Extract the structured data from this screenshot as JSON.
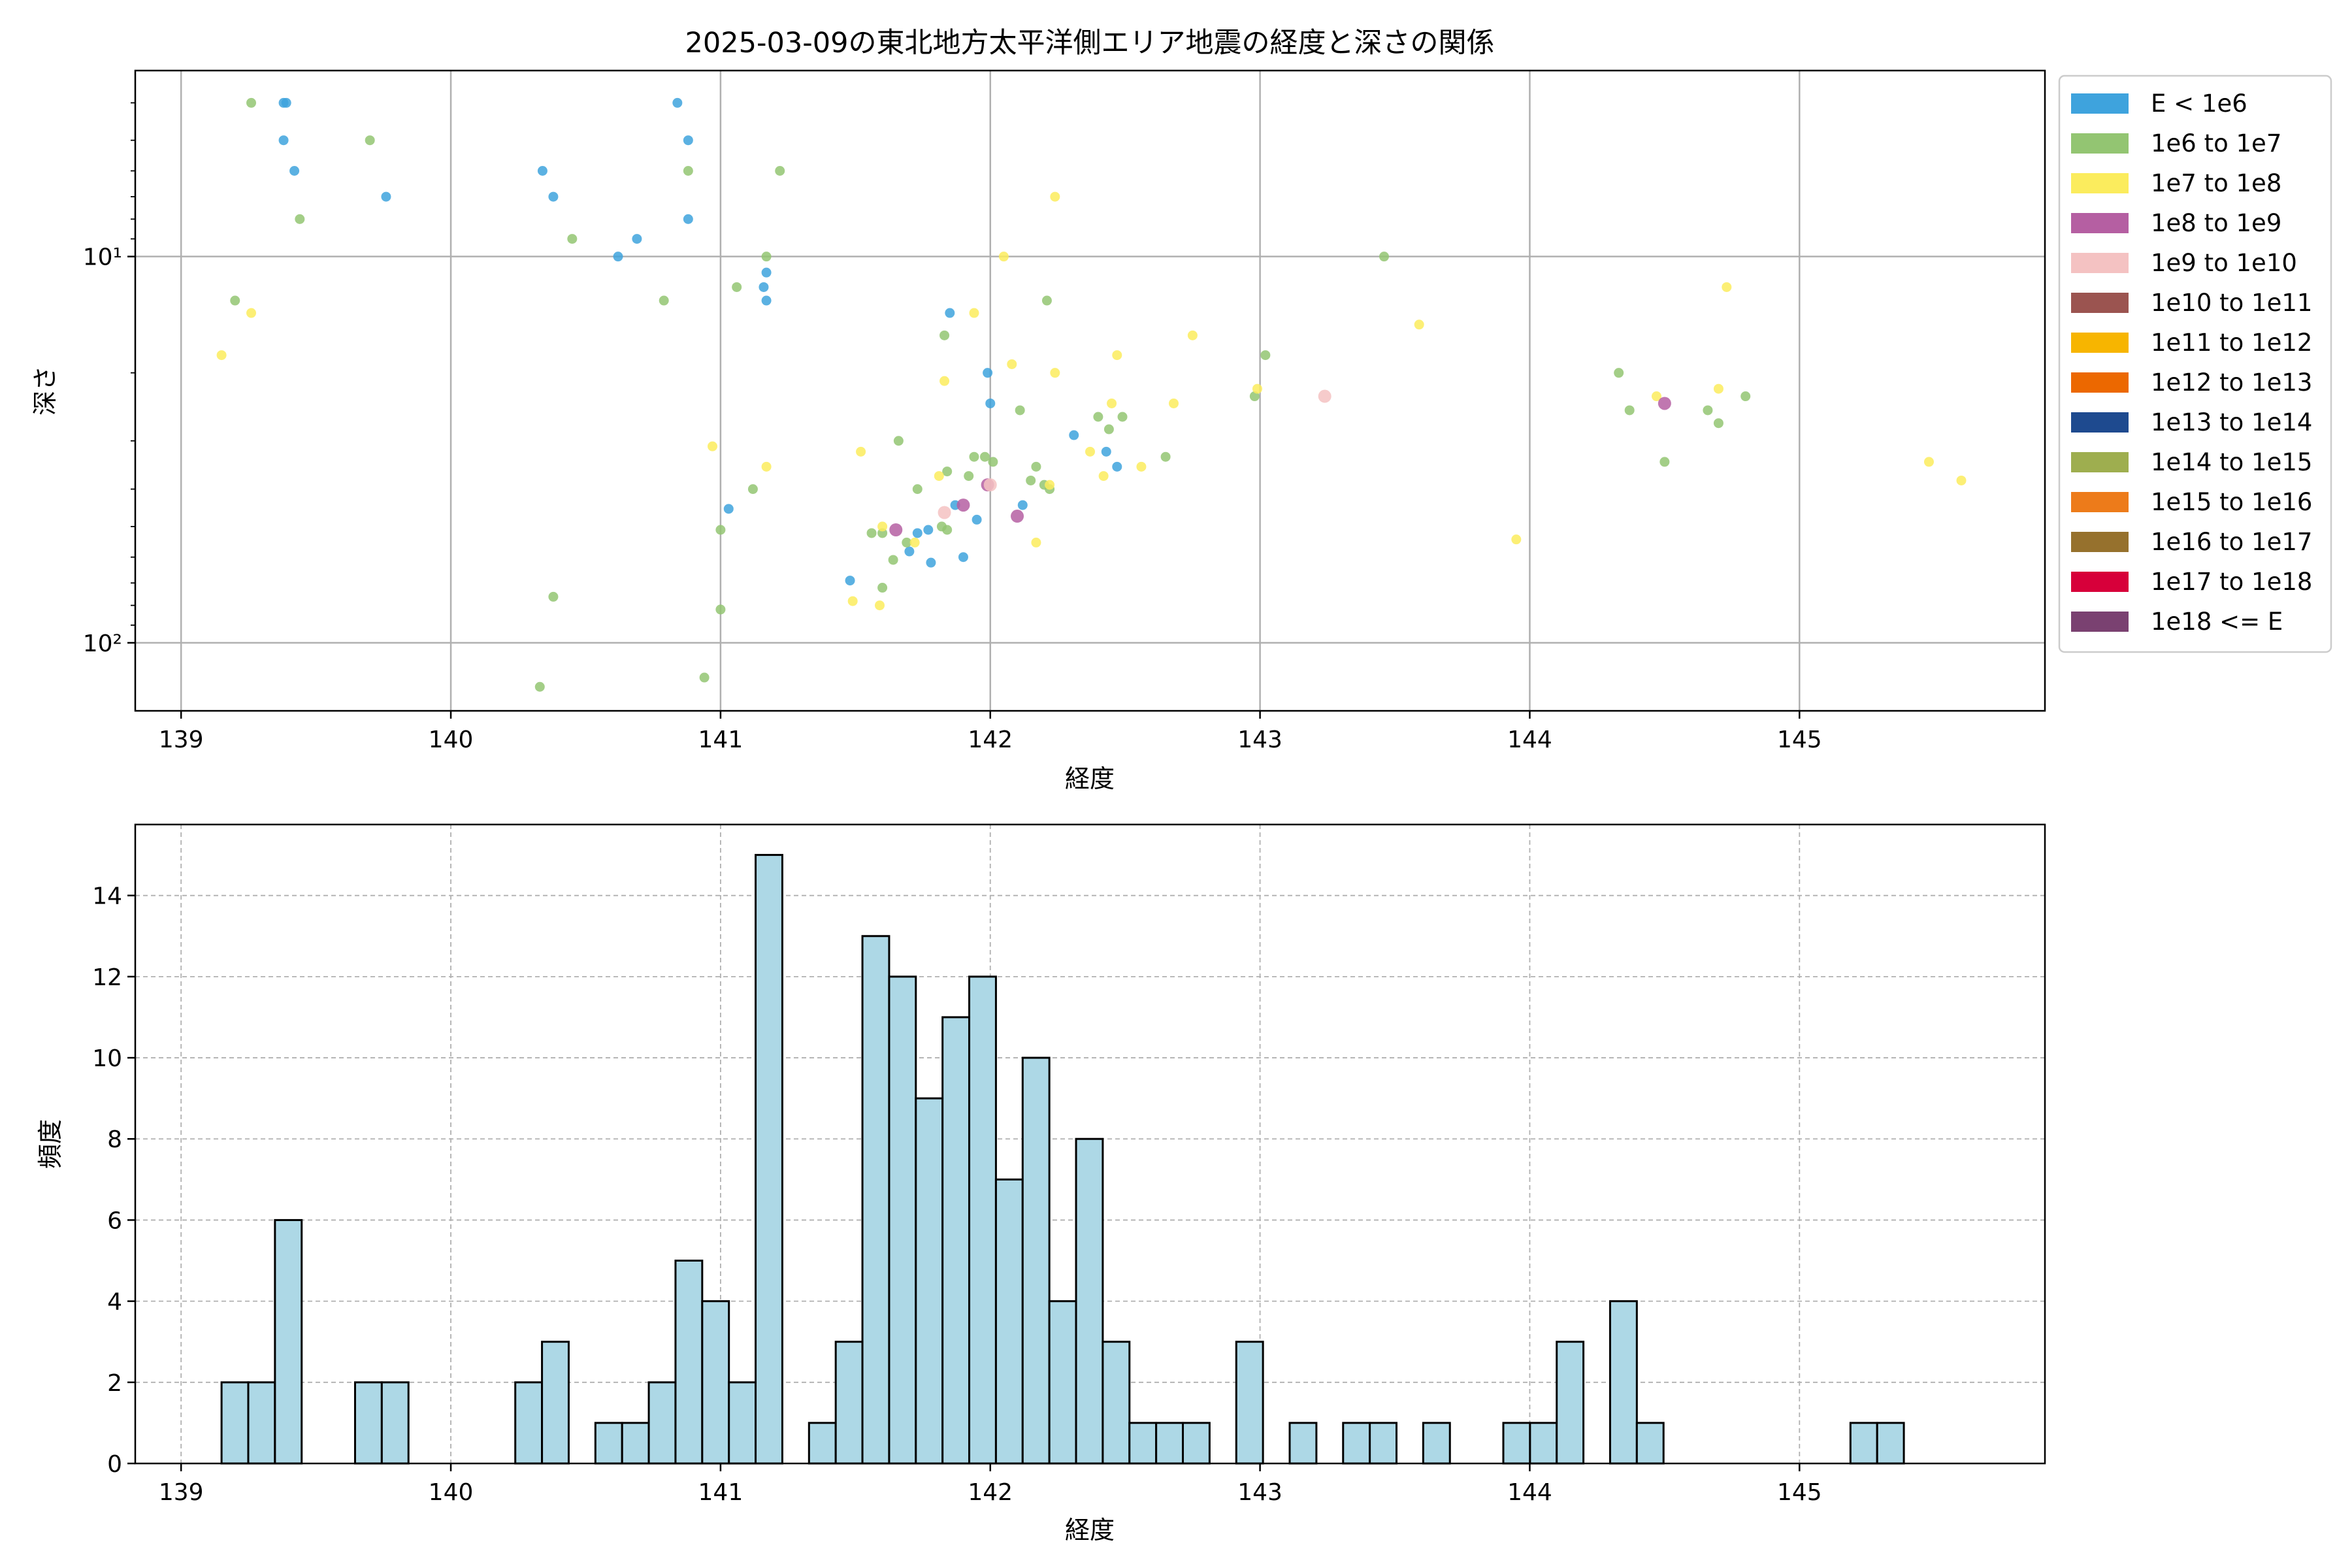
{
  "chart_data": [
    {
      "type": "scatter",
      "title": "2025-03-09の東北地方太平洋側エリア地震の経度と深さの関係",
      "xlabel": "経度",
      "ylabel": "深さ",
      "xlim": [
        138.83,
        145.91
      ],
      "ylim": [
        150,
        3.3
      ],
      "y_scale": "log",
      "y_inverted": true,
      "x_ticks": [
        "139",
        "140",
        "141",
        "142",
        "143",
        "144",
        "145"
      ],
      "y_ticks": [
        {
          "value": 10,
          "label": "10¹"
        },
        {
          "value": 100,
          "label": "10²"
        }
      ],
      "grid": true,
      "legend_position": "outside-right",
      "legend": [
        {
          "label": "E < 1e6",
          "color": "#3ea3dd"
        },
        {
          "label": "1e6 to 1e7",
          "color": "#93c572"
        },
        {
          "label": "1e7 to 1e8",
          "color": "#fbec5d"
        },
        {
          "label": "1e8 to 1e9",
          "color": "#b55fa2"
        },
        {
          "label": "1e9 to 1e10",
          "color": "#f4c2c2"
        },
        {
          "label": "1e10 to 1e11",
          "color": "#9b5450"
        },
        {
          "label": "1e11 to 1e12",
          "color": "#f7b500"
        },
        {
          "label": "1e12 to 1e13",
          "color": "#ec6800"
        },
        {
          "label": "1e13 to 1e14",
          "color": "#1e4a8f"
        },
        {
          "label": "1e14 to 1e15",
          "color": "#9eae4f"
        },
        {
          "label": "1e15 to 1e16",
          "color": "#ed7b1a"
        },
        {
          "label": "1e16 to 1e17",
          "color": "#96712d"
        },
        {
          "label": "1e17 to 1e18",
          "color": "#d7003a"
        },
        {
          "label": "1e18 <= E",
          "color": "#7a4171"
        }
      ],
      "series": [
        {
          "name": "E < 1e6",
          "points": [
            [
              139.38,
              4.0
            ],
            [
              139.39,
              4.0
            ],
            [
              139.38,
              5.0
            ],
            [
              139.42,
              6.0
            ],
            [
              139.76,
              7.0
            ],
            [
              140.34,
              6.0
            ],
            [
              140.38,
              7.0
            ],
            [
              140.62,
              10.0
            ],
            [
              140.69,
              9.0
            ],
            [
              140.84,
              4.0
            ],
            [
              140.88,
              5.0
            ],
            [
              140.88,
              8.0
            ],
            [
              141.16,
              12.0
            ],
            [
              141.17,
              11.0
            ],
            [
              141.17,
              13.0
            ],
            [
              141.03,
              45.0
            ],
            [
              141.85,
              14.0
            ],
            [
              141.99,
              20.0
            ],
            [
              142.0,
              24.0
            ],
            [
              142.31,
              29.0
            ],
            [
              142.43,
              32.0
            ],
            [
              142.47,
              35.0
            ],
            [
              142.12,
              44.0
            ],
            [
              141.87,
              44.0
            ],
            [
              141.95,
              48.0
            ],
            [
              141.77,
              51.0
            ],
            [
              141.73,
              52.0
            ],
            [
              141.7,
              58.0
            ],
            [
              141.78,
              62.0
            ],
            [
              141.9,
              60.0
            ],
            [
              141.48,
              69.0
            ]
          ]
        },
        {
          "name": "1e6 to 1e7",
          "points": [
            [
              139.26,
              4.0
            ],
            [
              139.7,
              5.0
            ],
            [
              139.44,
              8.0
            ],
            [
              140.45,
              9.0
            ],
            [
              139.2,
              13.0
            ],
            [
              140.79,
              13.0
            ],
            [
              140.88,
              6.0
            ],
            [
              141.22,
              6.0
            ],
            [
              141.06,
              12.0
            ],
            [
              141.17,
              10.0
            ],
            [
              141.12,
              40.0
            ],
            [
              141.0,
              51.0
            ],
            [
              141.0,
              82.0
            ],
            [
              140.38,
              76.0
            ],
            [
              140.33,
              130.0
            ],
            [
              140.94,
              123.0
            ],
            [
              141.83,
              16.0
            ],
            [
              142.21,
              13.0
            ],
            [
              143.02,
              18.0
            ],
            [
              143.46,
              10.0
            ],
            [
              142.98,
              23.0
            ],
            [
              142.11,
              25.0
            ],
            [
              142.4,
              26.0
            ],
            [
              142.49,
              26.0
            ],
            [
              142.44,
              28.0
            ],
            [
              142.65,
              33.0
            ],
            [
              141.66,
              30.0
            ],
            [
              141.94,
              33.0
            ],
            [
              141.98,
              33.0
            ],
            [
              142.01,
              34.0
            ],
            [
              142.17,
              35.0
            ],
            [
              141.84,
              36.0
            ],
            [
              141.73,
              40.0
            ],
            [
              141.92,
              37.0
            ],
            [
              141.82,
              50.0
            ],
            [
              141.84,
              51.0
            ],
            [
              141.6,
              52.0
            ],
            [
              141.56,
              52.0
            ],
            [
              141.69,
              55.0
            ],
            [
              141.64,
              61.0
            ],
            [
              141.6,
              72.0
            ],
            [
              142.15,
              38.0
            ],
            [
              142.2,
              39.0
            ],
            [
              142.22,
              40.0
            ],
            [
              144.33,
              20.0
            ],
            [
              144.37,
              25.0
            ],
            [
              144.66,
              25.0
            ],
            [
              144.7,
              27.0
            ],
            [
              144.8,
              23.0
            ],
            [
              144.5,
              34.0
            ]
          ]
        },
        {
          "name": "1e7 to 1e8",
          "points": [
            [
              139.26,
              14.0
            ],
            [
              139.15,
              18.0
            ],
            [
              140.97,
              31.0
            ],
            [
              141.17,
              35.0
            ],
            [
              142.24,
              7.0
            ],
            [
              142.05,
              10.0
            ],
            [
              141.94,
              14.0
            ],
            [
              142.08,
              19.0
            ],
            [
              142.24,
              20.0
            ],
            [
              142.47,
              18.0
            ],
            [
              142.75,
              16.0
            ],
            [
              143.59,
              15.0
            ],
            [
              142.68,
              24.0
            ],
            [
              142.99,
              22.0
            ],
            [
              142.45,
              24.0
            ],
            [
              142.37,
              32.0
            ],
            [
              142.56,
              35.0
            ],
            [
              142.42,
              37.0
            ],
            [
              141.81,
              37.0
            ],
            [
              141.52,
              32.0
            ],
            [
              141.49,
              78.0
            ],
            [
              141.59,
              80.0
            ],
            [
              141.6,
              50.0
            ],
            [
              141.72,
              55.0
            ],
            [
              142.17,
              55.0
            ],
            [
              142.22,
              39.0
            ],
            [
              141.83,
              21.0
            ],
            [
              144.73,
              12.0
            ],
            [
              144.7,
              22.0
            ],
            [
              144.47,
              23.0
            ],
            [
              145.48,
              34.0
            ],
            [
              145.6,
              38.0
            ],
            [
              143.95,
              54.0
            ]
          ]
        },
        {
          "name": "1e8 to 1e9",
          "points": [
            [
              144.5,
              24.0
            ],
            [
              141.9,
              44.0
            ],
            [
              142.1,
              47.0
            ],
            [
              141.99,
              39.0
            ],
            [
              141.65,
              51.0
            ]
          ]
        },
        {
          "name": "1e9 to 1e10",
          "points": [
            [
              143.24,
              23.0
            ],
            [
              141.83,
              46.0
            ],
            [
              142.0,
              39.0
            ]
          ]
        }
      ]
    },
    {
      "type": "bar",
      "title": "",
      "xlabel": "経度",
      "ylabel": "頻度",
      "xlim": [
        138.83,
        145.91
      ],
      "ylim": [
        0,
        15.75
      ],
      "x_ticks": [
        "139",
        "140",
        "141",
        "142",
        "143",
        "144",
        "145"
      ],
      "y_ticks": [
        "0",
        "2",
        "4",
        "6",
        "8",
        "10",
        "12",
        "14"
      ],
      "grid": true,
      "bar_color": "#add8e6",
      "bin_start": 139.15,
      "bin_width": 0.099,
      "values": [
        2,
        2,
        6,
        0,
        0,
        2,
        2,
        0,
        0,
        0,
        0,
        2,
        3,
        0,
        1,
        1,
        2,
        5,
        4,
        2,
        15,
        0,
        1,
        3,
        13,
        12,
        9,
        11,
        12,
        7,
        10,
        4,
        8,
        3,
        1,
        1,
        1,
        0,
        3,
        0,
        1,
        0,
        1,
        1,
        0,
        1,
        0,
        0,
        1,
        1,
        3,
        0,
        4,
        1,
        0,
        0,
        0,
        0,
        0,
        0,
        0,
        1,
        1
      ]
    }
  ]
}
